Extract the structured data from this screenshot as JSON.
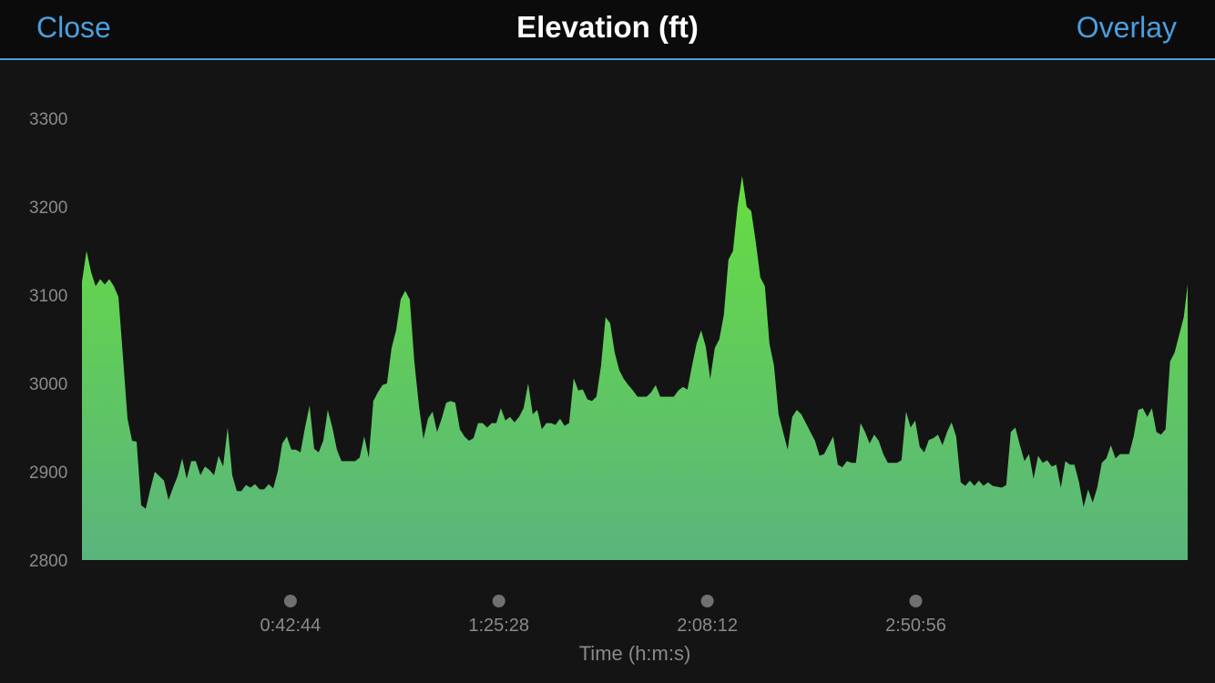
{
  "header": {
    "close_label": "Close",
    "title": "Elevation (ft)",
    "overlay_label": "Overlay"
  },
  "colors": {
    "accent": "#4a9fe0",
    "area_top": "#66dd40",
    "area_bottom": "#5ab57d",
    "background": "#141414",
    "marker": "#707070"
  },
  "chart_data": {
    "type": "area",
    "xlabel": "Time (h:m:s)",
    "ylabel": "",
    "title": "Elevation (ft)",
    "x_range_seconds": [
      0,
      13600
    ],
    "ylim": [
      2800,
      3300
    ],
    "yticks": [
      2800,
      2900,
      3000,
      3100,
      3200,
      3300
    ],
    "yticks_labels": [
      "2800",
      "2900",
      "3000",
      "3100",
      "3200",
      "3300"
    ],
    "xticks": [
      {
        "seconds": 2564,
        "label": "0:42:44"
      },
      {
        "seconds": 5128,
        "label": "1:25:28"
      },
      {
        "seconds": 7692,
        "label": "2:08:12"
      },
      {
        "seconds": 10256,
        "label": "2:50:56"
      }
    ],
    "grid": false,
    "series": [
      {
        "values": [
          [
            0,
            3115
          ],
          [
            56,
            3150
          ],
          [
            112,
            3126
          ],
          [
            168,
            3110
          ],
          [
            224,
            3118
          ],
          [
            280,
            3112
          ],
          [
            336,
            3118
          ],
          [
            392,
            3110
          ],
          [
            448,
            3098
          ],
          [
            504,
            3030
          ],
          [
            560,
            2960
          ],
          [
            616,
            2935
          ],
          [
            672,
            2934
          ],
          [
            728,
            2862
          ],
          [
            784,
            2858
          ],
          [
            840,
            2880
          ],
          [
            896,
            2900
          ],
          [
            952,
            2895
          ],
          [
            1008,
            2890
          ],
          [
            1064,
            2868
          ],
          [
            1120,
            2882
          ],
          [
            1176,
            2895
          ],
          [
            1232,
            2915
          ],
          [
            1288,
            2892
          ],
          [
            1344,
            2912
          ],
          [
            1400,
            2912
          ],
          [
            1456,
            2896
          ],
          [
            1512,
            2906
          ],
          [
            1568,
            2902
          ],
          [
            1624,
            2896
          ],
          [
            1680,
            2918
          ],
          [
            1736,
            2906
          ],
          [
            1792,
            2950
          ],
          [
            1848,
            2896
          ],
          [
            1904,
            2878
          ],
          [
            1960,
            2878
          ],
          [
            2016,
            2885
          ],
          [
            2072,
            2882
          ],
          [
            2128,
            2886
          ],
          [
            2184,
            2880
          ],
          [
            2240,
            2880
          ],
          [
            2296,
            2886
          ],
          [
            2352,
            2881
          ],
          [
            2408,
            2900
          ],
          [
            2464,
            2932
          ],
          [
            2520,
            2940
          ],
          [
            2576,
            2925
          ],
          [
            2632,
            2925
          ],
          [
            2688,
            2922
          ],
          [
            2744,
            2950
          ],
          [
            2800,
            2975
          ],
          [
            2856,
            2926
          ],
          [
            2912,
            2922
          ],
          [
            2968,
            2935
          ],
          [
            3024,
            2970
          ],
          [
            3080,
            2950
          ],
          [
            3136,
            2925
          ],
          [
            3192,
            2912
          ],
          [
            3248,
            2912
          ],
          [
            3304,
            2912
          ],
          [
            3360,
            2912
          ],
          [
            3416,
            2916
          ],
          [
            3472,
            2940
          ],
          [
            3528,
            2916
          ],
          [
            3584,
            2980
          ],
          [
            3640,
            2990
          ],
          [
            3696,
            2998
          ],
          [
            3752,
            3000
          ],
          [
            3808,
            3040
          ],
          [
            3864,
            3060
          ],
          [
            3920,
            3095
          ],
          [
            3976,
            3105
          ],
          [
            4032,
            3095
          ],
          [
            4088,
            3025
          ],
          [
            4144,
            2975
          ],
          [
            4200,
            2937
          ],
          [
            4256,
            2960
          ],
          [
            4312,
            2968
          ],
          [
            4368,
            2945
          ],
          [
            4424,
            2960
          ],
          [
            4480,
            2978
          ],
          [
            4536,
            2980
          ],
          [
            4592,
            2978
          ],
          [
            4648,
            2948
          ],
          [
            4704,
            2940
          ],
          [
            4760,
            2935
          ],
          [
            4816,
            2938
          ],
          [
            4872,
            2955
          ],
          [
            4928,
            2955
          ],
          [
            4984,
            2950
          ],
          [
            5040,
            2955
          ],
          [
            5096,
            2955
          ],
          [
            5152,
            2972
          ],
          [
            5208,
            2958
          ],
          [
            5264,
            2962
          ],
          [
            5320,
            2956
          ],
          [
            5376,
            2962
          ],
          [
            5432,
            2972
          ],
          [
            5488,
            3000
          ],
          [
            5544,
            2965
          ],
          [
            5600,
            2970
          ],
          [
            5656,
            2948
          ],
          [
            5712,
            2955
          ],
          [
            5768,
            2955
          ],
          [
            5824,
            2953
          ],
          [
            5880,
            2960
          ],
          [
            5936,
            2952
          ],
          [
            5992,
            2955
          ],
          [
            6048,
            3006
          ],
          [
            6104,
            2992
          ],
          [
            6160,
            2993
          ],
          [
            6216,
            2982
          ],
          [
            6272,
            2980
          ],
          [
            6328,
            2985
          ],
          [
            6384,
            3020
          ],
          [
            6440,
            3075
          ],
          [
            6496,
            3068
          ],
          [
            6552,
            3035
          ],
          [
            6608,
            3015
          ],
          [
            6664,
            3005
          ],
          [
            6720,
            2998
          ],
          [
            6776,
            2992
          ],
          [
            6832,
            2985
          ],
          [
            6888,
            2985
          ],
          [
            6944,
            2985
          ],
          [
            7000,
            2990
          ],
          [
            7056,
            2998
          ],
          [
            7112,
            2985
          ],
          [
            7168,
            2985
          ],
          [
            7224,
            2985
          ],
          [
            7280,
            2985
          ],
          [
            7336,
            2992
          ],
          [
            7392,
            2996
          ],
          [
            7448,
            2993
          ],
          [
            7504,
            3020
          ],
          [
            7560,
            3045
          ],
          [
            7616,
            3060
          ],
          [
            7672,
            3042
          ],
          [
            7728,
            3005
          ],
          [
            7784,
            3040
          ],
          [
            7840,
            3050
          ],
          [
            7896,
            3078
          ],
          [
            7952,
            3140
          ],
          [
            8008,
            3150
          ],
          [
            8064,
            3200
          ],
          [
            8120,
            3235
          ],
          [
            8176,
            3200
          ],
          [
            8232,
            3195
          ],
          [
            8288,
            3160
          ],
          [
            8344,
            3120
          ],
          [
            8400,
            3110
          ],
          [
            8456,
            3045
          ],
          [
            8512,
            3020
          ],
          [
            8568,
            2965
          ],
          [
            8624,
            2945
          ],
          [
            8680,
            2925
          ],
          [
            8736,
            2962
          ],
          [
            8792,
            2970
          ],
          [
            8848,
            2965
          ],
          [
            8904,
            2955
          ],
          [
            8960,
            2945
          ],
          [
            9016,
            2935
          ],
          [
            9072,
            2918
          ],
          [
            9128,
            2920
          ],
          [
            9184,
            2930
          ],
          [
            9240,
            2940
          ],
          [
            9296,
            2908
          ],
          [
            9352,
            2905
          ],
          [
            9408,
            2912
          ],
          [
            9464,
            2910
          ],
          [
            9520,
            2910
          ],
          [
            9576,
            2955
          ],
          [
            9632,
            2945
          ],
          [
            9688,
            2932
          ],
          [
            9744,
            2942
          ],
          [
            9800,
            2935
          ],
          [
            9856,
            2920
          ],
          [
            9912,
            2910
          ],
          [
            9968,
            2910
          ],
          [
            10024,
            2910
          ],
          [
            10080,
            2913
          ],
          [
            10136,
            2968
          ],
          [
            10192,
            2950
          ],
          [
            10248,
            2958
          ],
          [
            10304,
            2928
          ],
          [
            10360,
            2922
          ],
          [
            10416,
            2936
          ],
          [
            10472,
            2938
          ],
          [
            10528,
            2942
          ],
          [
            10584,
            2930
          ],
          [
            10640,
            2945
          ],
          [
            10696,
            2956
          ],
          [
            10752,
            2940
          ],
          [
            10808,
            2888
          ],
          [
            10864,
            2884
          ],
          [
            10920,
            2890
          ],
          [
            10976,
            2884
          ],
          [
            11032,
            2890
          ],
          [
            11088,
            2884
          ],
          [
            11144,
            2888
          ],
          [
            11200,
            2884
          ],
          [
            11256,
            2883
          ],
          [
            11312,
            2882
          ],
          [
            11368,
            2885
          ],
          [
            11424,
            2945
          ],
          [
            11480,
            2950
          ],
          [
            11536,
            2930
          ],
          [
            11592,
            2912
          ],
          [
            11648,
            2920
          ],
          [
            11704,
            2892
          ],
          [
            11760,
            2918
          ],
          [
            11816,
            2910
          ],
          [
            11872,
            2913
          ],
          [
            11928,
            2906
          ],
          [
            11984,
            2908
          ],
          [
            12040,
            2882
          ],
          [
            12096,
            2912
          ],
          [
            12152,
            2908
          ],
          [
            12208,
            2908
          ],
          [
            12264,
            2888
          ],
          [
            12320,
            2860
          ],
          [
            12376,
            2880
          ],
          [
            12432,
            2865
          ],
          [
            12488,
            2882
          ],
          [
            12544,
            2910
          ],
          [
            12600,
            2915
          ],
          [
            12656,
            2930
          ],
          [
            12712,
            2915
          ],
          [
            12768,
            2920
          ],
          [
            12824,
            2920
          ],
          [
            12880,
            2920
          ],
          [
            12936,
            2940
          ],
          [
            12992,
            2970
          ],
          [
            13048,
            2972
          ],
          [
            13104,
            2962
          ],
          [
            13160,
            2972
          ],
          [
            13216,
            2945
          ],
          [
            13272,
            2942
          ],
          [
            13328,
            2948
          ],
          [
            13384,
            3025
          ],
          [
            13440,
            3035
          ],
          [
            13496,
            3055
          ],
          [
            13552,
            3075
          ],
          [
            13600,
            3112
          ]
        ]
      }
    ]
  }
}
